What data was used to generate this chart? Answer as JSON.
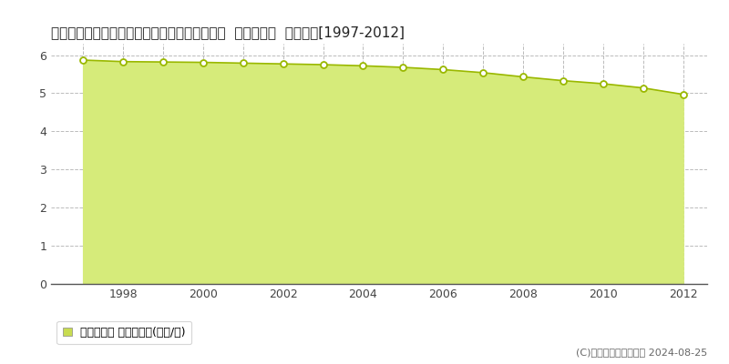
{
  "title": "岩手県紫波郡紫波町南日詰字箱清水１２５番１  基準地価格  地価推移[1997-2012]",
  "years": [
    1997,
    1998,
    1999,
    2000,
    2001,
    2002,
    2003,
    2004,
    2005,
    2006,
    2007,
    2008,
    2009,
    2010,
    2011,
    2012
  ],
  "values": [
    5.87,
    5.83,
    5.82,
    5.81,
    5.79,
    5.77,
    5.75,
    5.72,
    5.68,
    5.62,
    5.54,
    5.43,
    5.33,
    5.25,
    5.14,
    4.97
  ],
  "ylim": [
    0,
    6.3
  ],
  "yticks": [
    0,
    1,
    2,
    3,
    4,
    5,
    6
  ],
  "xticks": [
    1998,
    2000,
    2002,
    2004,
    2006,
    2008,
    2010,
    2012
  ],
  "xlim_left": 1996.2,
  "xlim_right": 2012.6,
  "fill_color": "#d6eb7a",
  "line_color": "#9ab800",
  "marker_facecolor": "#ffffff",
  "marker_edgecolor": "#9ab800",
  "bg_color": "#ffffff",
  "plot_bg_color": "#ffffff",
  "grid_color": "#bbbbbb",
  "legend_label": "基準地価格 平均坪単価(万円/坪)",
  "legend_marker_color": "#c8dc50",
  "copyright_text": "(C)土地価格ドットコム 2024-08-25",
  "tick_fontsize": 9,
  "title_fontsize": 11
}
